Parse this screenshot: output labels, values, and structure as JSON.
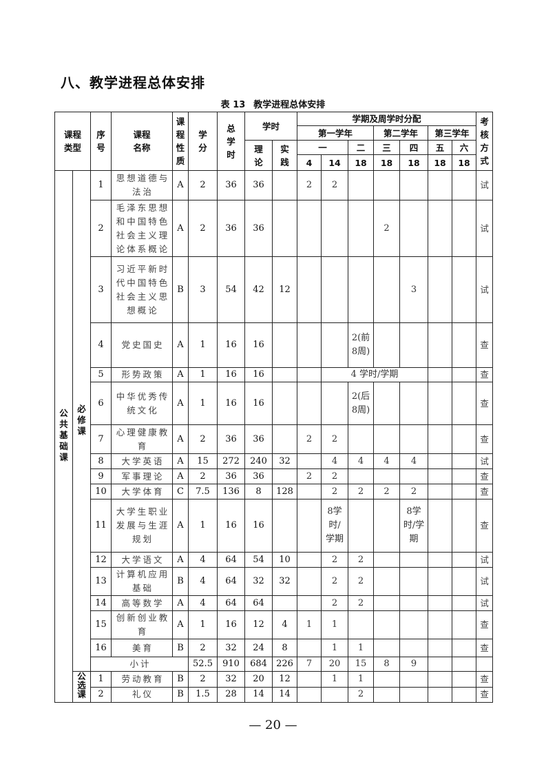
{
  "section_title": "八、教学进程总体安排",
  "caption": {
    "label": "表 13",
    "title": "教学进程总体安排"
  },
  "header": {
    "course_type": "课程类型",
    "seq": "序号",
    "course_name": "课程名称",
    "nature": "课程性质",
    "credits": "学分",
    "total_hours": "总学时",
    "hours": "学时",
    "theory": "理论",
    "practice": "实践",
    "semester_dist": "学期及周学时分配",
    "years": [
      "第一学年",
      "第二学年",
      "第三学年"
    ],
    "terms": [
      "一",
      "二",
      "三",
      "四",
      "五",
      "六"
    ],
    "weeks": [
      "4",
      "14",
      "18",
      "18",
      "18",
      "18",
      "18"
    ],
    "exam": "考核方式"
  },
  "category": "公共基础课",
  "required_group": {
    "label": "必修课",
    "rows": [
      {
        "seq": "1",
        "name": "思想道德与法治",
        "nature": "A",
        "credits": "2",
        "total": "36",
        "theory": "36",
        "practice": "",
        "sem": [
          "2",
          "2",
          "",
          "",
          "",
          "",
          ""
        ],
        "exam": "试"
      },
      {
        "seq": "2",
        "name": "毛泽东思想和中国特色社会主义理论体系概论",
        "nature": "A",
        "credits": "2",
        "total": "36",
        "theory": "36",
        "practice": "",
        "sem": [
          "",
          "",
          "",
          "2",
          "",
          "",
          ""
        ],
        "exam": "试"
      },
      {
        "seq": "3",
        "name": "习近平新时代中国特色社会主义思想概论",
        "nature": "B",
        "credits": "3",
        "total": "54",
        "theory": "42",
        "practice": "12",
        "sem": [
          "",
          "",
          "",
          "",
          "3",
          "",
          ""
        ],
        "exam": "试"
      },
      {
        "seq": "4",
        "name": "党史国史",
        "nature": "A",
        "credits": "1",
        "total": "16",
        "theory": "16",
        "practice": "",
        "sem": [
          "",
          "",
          "2(前8周)",
          "",
          "",
          "",
          ""
        ],
        "exam": "查"
      },
      {
        "seq": "5",
        "name": "形势政策",
        "nature": "A",
        "credits": "1",
        "total": "16",
        "theory": "16",
        "practice": "",
        "span_text": "4 学时/学期",
        "exam": "查"
      },
      {
        "seq": "6",
        "name": "中华优秀传统文化",
        "nature": "A",
        "credits": "1",
        "total": "16",
        "theory": "16",
        "practice": "",
        "sem": [
          "",
          "",
          "2(后8周)",
          "",
          "",
          "",
          ""
        ],
        "exam": "查"
      },
      {
        "seq": "7",
        "name": "心理健康教育",
        "nature": "A",
        "credits": "2",
        "total": "36",
        "theory": "36",
        "practice": "",
        "sem": [
          "2",
          "2",
          "",
          "",
          "",
          "",
          ""
        ],
        "exam": "查"
      },
      {
        "seq": "8",
        "name": "大学英语",
        "nature": "A",
        "credits": "15",
        "total": "272",
        "theory": "240",
        "practice": "32",
        "sem": [
          "",
          "4",
          "4",
          "4",
          "4",
          "",
          ""
        ],
        "exam": "试"
      },
      {
        "seq": "9",
        "name": "军事理论",
        "nature": "A",
        "credits": "2",
        "total": "36",
        "theory": "36",
        "practice": "",
        "sem": [
          "2",
          "2",
          "",
          "",
          "",
          "",
          ""
        ],
        "exam": "查"
      },
      {
        "seq": "10",
        "name": "大学体育",
        "nature": "C",
        "credits": "7.5",
        "total": "136",
        "theory": "8",
        "practice": "128",
        "sem": [
          "",
          "2",
          "2",
          "2",
          "2",
          "",
          ""
        ],
        "exam": "查"
      },
      {
        "seq": "11",
        "name": "大学生职业发展与生涯规划",
        "nature": "A",
        "credits": "1",
        "total": "16",
        "theory": "16",
        "practice": "",
        "sem": [
          "",
          "8学时/学期",
          "",
          "",
          "8学时/学期",
          "",
          ""
        ],
        "exam": "查"
      },
      {
        "seq": "12",
        "name": "大学语文",
        "nature": "A",
        "credits": "4",
        "total": "64",
        "theory": "54",
        "practice": "10",
        "sem": [
          "",
          "2",
          "2",
          "",
          "",
          "",
          ""
        ],
        "exam": "试"
      },
      {
        "seq": "13",
        "name": "计算机应用基础",
        "nature": "B",
        "credits": "4",
        "total": "64",
        "theory": "32",
        "practice": "32",
        "sem": [
          "",
          "2",
          "2",
          "",
          "",
          "",
          ""
        ],
        "exam": "试"
      },
      {
        "seq": "14",
        "name": "高等数学",
        "nature": "A",
        "credits": "4",
        "total": "64",
        "theory": "64",
        "practice": "",
        "sem": [
          "",
          "2",
          "2",
          "",
          "",
          "",
          ""
        ],
        "exam": "试"
      },
      {
        "seq": "15",
        "name": "创新创业教育",
        "nature": "A",
        "credits": "1",
        "total": "16",
        "theory": "12",
        "practice": "4",
        "sem": [
          "1",
          "1",
          "",
          "",
          "",
          "",
          ""
        ],
        "exam": "查"
      },
      {
        "seq": "16",
        "name": "美育",
        "nature": "B",
        "credits": "2",
        "total": "32",
        "theory": "24",
        "practice": "8",
        "sem": [
          "",
          "1",
          "1",
          "",
          "",
          "",
          ""
        ],
        "exam": "查"
      }
    ],
    "subtotal": {
      "label": "小计",
      "credits": "52.5",
      "total": "910",
      "theory": "684",
      "practice": "226",
      "sem": [
        "7",
        "20",
        "15",
        "8",
        "9",
        "",
        ""
      ],
      "exam": ""
    }
  },
  "elective_group": {
    "label": "公选课",
    "rows": [
      {
        "seq": "1",
        "name": "劳动教育",
        "nature": "B",
        "credits": "2",
        "total": "32",
        "theory": "20",
        "practice": "12",
        "sem": [
          "",
          "1",
          "1",
          "",
          "",
          "",
          ""
        ],
        "exam": "查"
      },
      {
        "seq": "2",
        "name": "礼仪",
        "nature": "B",
        "credits": "1.5",
        "total": "28",
        "theory": "14",
        "practice": "14",
        "sem": [
          "",
          "",
          "2",
          "",
          "",
          "",
          ""
        ],
        "exam": "查"
      }
    ]
  },
  "page_number": "— 20 —"
}
